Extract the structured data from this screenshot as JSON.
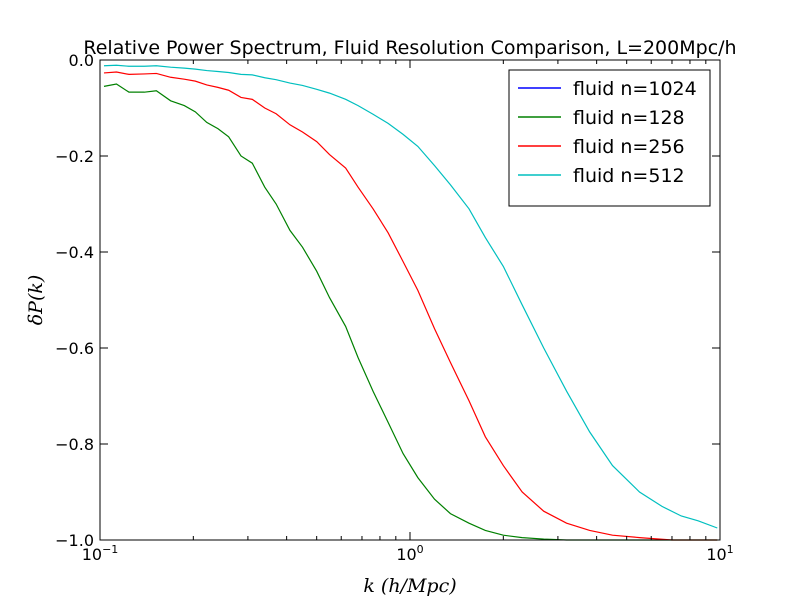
{
  "chart_data": {
    "type": "line",
    "title": "Relative Power Spectrum, Fluid Resolution Comparison, L=200Mpc/h",
    "xlabel": "k (h/Mpc)",
    "ylabel": "δP(k)",
    "xscale": "log",
    "xlim": [
      0.1,
      10
    ],
    "ylim": [
      -1.0,
      0.0
    ],
    "grid": false,
    "legend_position": "top-right",
    "x_ticks": [
      {
        "value": 0.1,
        "base": "10",
        "exp": "−1"
      },
      {
        "value": 1,
        "base": "10",
        "exp": "0"
      },
      {
        "value": 10,
        "base": "10",
        "exp": "1"
      }
    ],
    "y_ticks": [
      {
        "value": 0.0,
        "label": "0.0"
      },
      {
        "value": -0.2,
        "label": "−0.2"
      },
      {
        "value": -0.4,
        "label": "−0.4"
      },
      {
        "value": -0.6,
        "label": "−0.6"
      },
      {
        "value": -0.8,
        "label": "−0.8"
      },
      {
        "value": -1.0,
        "label": "−1.0"
      }
    ],
    "series": [
      {
        "name": "fluid n=1024",
        "color": "#0000ff",
        "x": [],
        "y": []
      },
      {
        "name": "fluid n=128",
        "color": "#008000",
        "x": [
          0.103,
          0.113,
          0.124,
          0.139,
          0.152,
          0.169,
          0.187,
          0.203,
          0.221,
          0.24,
          0.26,
          0.285,
          0.31,
          0.34,
          0.37,
          0.41,
          0.45,
          0.5,
          0.55,
          0.62,
          0.68,
          0.76,
          0.85,
          0.95,
          1.06,
          1.2,
          1.35,
          1.55,
          1.75,
          2.0,
          2.3,
          2.7,
          3.2,
          4.0,
          5.0,
          6.5,
          8.0,
          9.8
        ],
        "y": [
          -0.055,
          -0.05,
          -0.067,
          -0.067,
          -0.064,
          -0.085,
          -0.095,
          -0.108,
          -0.13,
          -0.143,
          -0.16,
          -0.2,
          -0.215,
          -0.265,
          -0.3,
          -0.355,
          -0.39,
          -0.44,
          -0.495,
          -0.555,
          -0.62,
          -0.69,
          -0.755,
          -0.82,
          -0.87,
          -0.915,
          -0.945,
          -0.965,
          -0.98,
          -0.99,
          -0.995,
          -0.998,
          -1.0,
          -1.0,
          -1.0,
          -1.0,
          -1.0,
          -1.0
        ]
      },
      {
        "name": "fluid n=256",
        "color": "#ff0000",
        "x": [
          0.103,
          0.113,
          0.124,
          0.139,
          0.152,
          0.169,
          0.187,
          0.203,
          0.221,
          0.24,
          0.26,
          0.285,
          0.31,
          0.34,
          0.37,
          0.41,
          0.45,
          0.5,
          0.55,
          0.62,
          0.68,
          0.76,
          0.85,
          0.95,
          1.06,
          1.2,
          1.35,
          1.55,
          1.75,
          2.0,
          2.3,
          2.7,
          3.2,
          3.8,
          4.5,
          5.5,
          7.0,
          9.8
        ],
        "y": [
          -0.027,
          -0.025,
          -0.03,
          -0.029,
          -0.028,
          -0.036,
          -0.04,
          -0.044,
          -0.052,
          -0.057,
          -0.063,
          -0.078,
          -0.082,
          -0.1,
          -0.112,
          -0.135,
          -0.15,
          -0.17,
          -0.197,
          -0.225,
          -0.265,
          -0.31,
          -0.36,
          -0.42,
          -0.48,
          -0.56,
          -0.63,
          -0.71,
          -0.785,
          -0.845,
          -0.9,
          -0.94,
          -0.965,
          -0.98,
          -0.99,
          -0.995,
          -1.0,
          -1.0
        ]
      },
      {
        "name": "fluid n=512",
        "color": "#00bfbf",
        "x": [
          0.103,
          0.113,
          0.124,
          0.139,
          0.152,
          0.169,
          0.187,
          0.203,
          0.221,
          0.24,
          0.26,
          0.285,
          0.31,
          0.34,
          0.37,
          0.41,
          0.45,
          0.5,
          0.55,
          0.62,
          0.68,
          0.76,
          0.85,
          0.95,
          1.06,
          1.2,
          1.35,
          1.55,
          1.75,
          2.0,
          2.3,
          2.7,
          3.2,
          3.8,
          4.5,
          5.5,
          6.5,
          7.5,
          8.5,
          9.8
        ],
        "y": [
          -0.012,
          -0.011,
          -0.013,
          -0.013,
          -0.012,
          -0.015,
          -0.017,
          -0.019,
          -0.022,
          -0.024,
          -0.026,
          -0.03,
          -0.031,
          -0.037,
          -0.041,
          -0.048,
          -0.053,
          -0.061,
          -0.069,
          -0.082,
          -0.095,
          -0.113,
          -0.132,
          -0.155,
          -0.18,
          -0.22,
          -0.26,
          -0.31,
          -0.37,
          -0.43,
          -0.51,
          -0.6,
          -0.69,
          -0.775,
          -0.845,
          -0.9,
          -0.93,
          -0.95,
          -0.96,
          -0.975
        ]
      }
    ]
  }
}
